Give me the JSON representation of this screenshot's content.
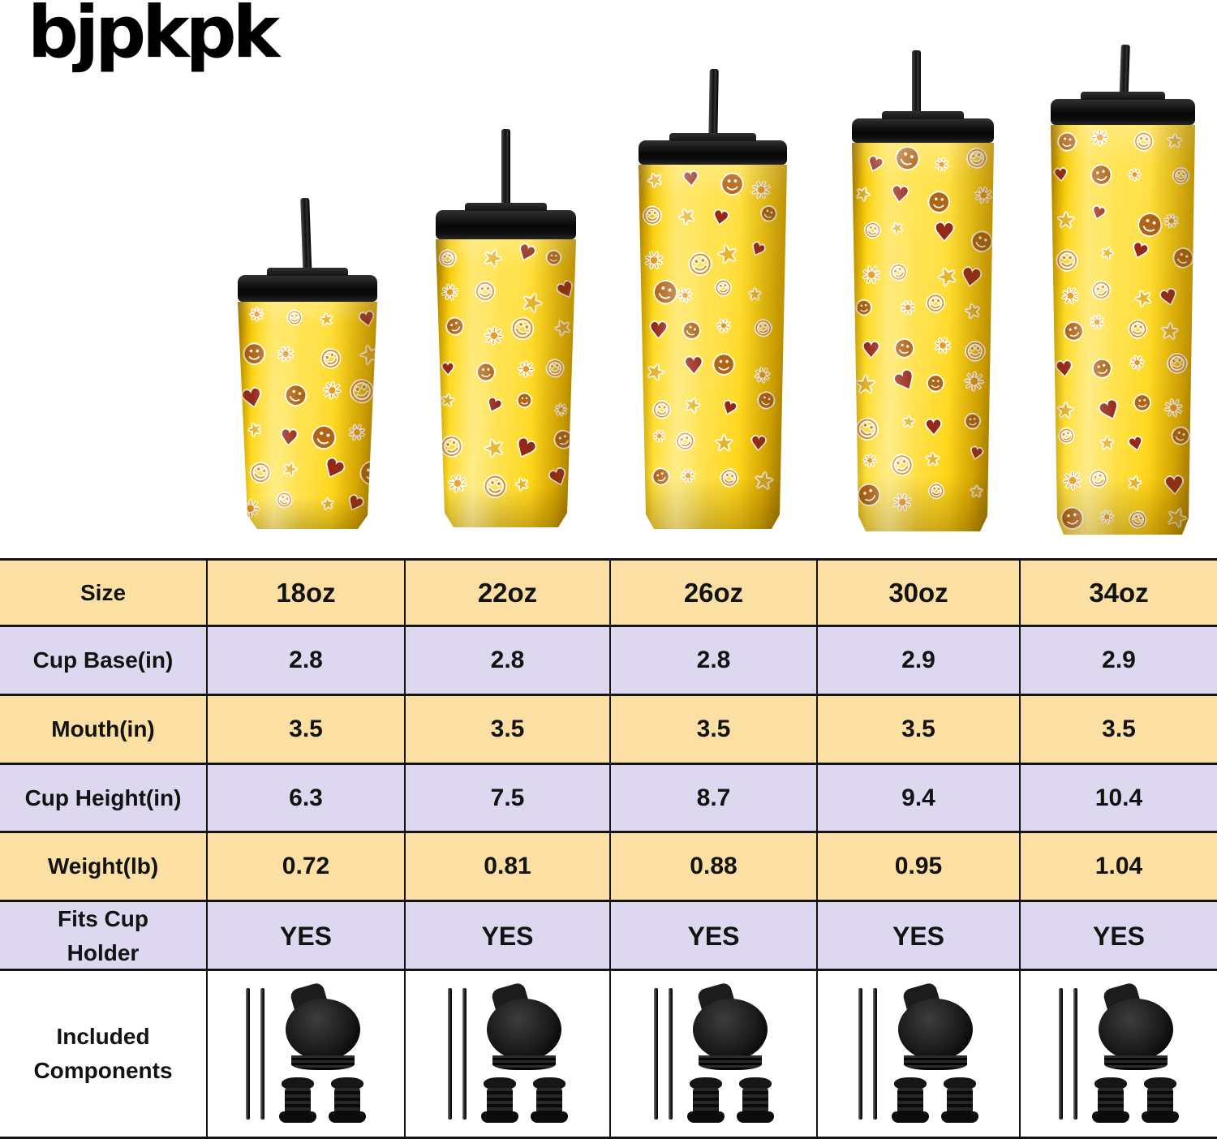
{
  "brand": {
    "logo_text": "bjpkpk"
  },
  "colors": {
    "row_yellow": "#fce0a3",
    "row_lavender": "#ded7f0",
    "row_white": "#ffffff",
    "table_border": "#141414",
    "cup_yellow": "#ffd91d",
    "lid_black": "#141414"
  },
  "sticker_icons": [
    {
      "name": "sun-icon",
      "glyph": "☀",
      "color": "#e8961e"
    },
    {
      "name": "smiley-face-icon",
      "glyph": "☺",
      "color": "#d8881c"
    },
    {
      "name": "star-icon",
      "glyph": "★",
      "color": "#e7b32a"
    },
    {
      "name": "heart-icon",
      "glyph": "♥",
      "color": "#96281a"
    },
    {
      "name": "smiley-dark-icon",
      "glyph": "☻",
      "color": "#b06414"
    }
  ],
  "table": {
    "rows": [
      {
        "key": "size",
        "label": "Size",
        "bg": "yellow",
        "values": [
          "18oz",
          "22oz",
          "26oz",
          "30oz",
          "34oz"
        ]
      },
      {
        "key": "cup_base",
        "label": "Cup Base(in)",
        "bg": "lavender",
        "values": [
          "2.8",
          "2.8",
          "2.8",
          "2.9",
          "2.9"
        ]
      },
      {
        "key": "mouth",
        "label": "Mouth(in)",
        "bg": "yellow",
        "values": [
          "3.5",
          "3.5",
          "3.5",
          "3.5",
          "3.5"
        ]
      },
      {
        "key": "cup_height",
        "label": "Cup Height(in)",
        "bg": "lavender",
        "values": [
          "6.3",
          "7.5",
          "8.7",
          "9.4",
          "10.4"
        ]
      },
      {
        "key": "weight",
        "label": "Weight(lb)",
        "bg": "yellow",
        "values": [
          "0.72",
          "0.81",
          "0.88",
          "0.95",
          "1.04"
        ]
      },
      {
        "key": "fits",
        "label": "Fits Cup Holder",
        "bg": "lavender",
        "values": [
          "YES",
          "YES",
          "YES",
          "YES",
          "YES"
        ]
      },
      {
        "key": "components",
        "label": "Included Components",
        "bg": "white",
        "type": "components",
        "icons": [
          "metal-straws-icon",
          "flip-lid-icon",
          "straw-stopper-icon"
        ]
      }
    ]
  },
  "chart_data": {
    "type": "table",
    "columns": [
      "18oz",
      "22oz",
      "26oz",
      "30oz",
      "34oz"
    ],
    "rows": [
      {
        "label": "Cup Base(in)",
        "values": [
          2.8,
          2.8,
          2.8,
          2.9,
          2.9
        ]
      },
      {
        "label": "Mouth(in)",
        "values": [
          3.5,
          3.5,
          3.5,
          3.5,
          3.5
        ]
      },
      {
        "label": "Cup Height(in)",
        "values": [
          6.3,
          7.5,
          8.7,
          9.4,
          10.4
        ]
      },
      {
        "label": "Weight(lb)",
        "values": [
          0.72,
          0.81,
          0.88,
          0.95,
          1.04
        ]
      },
      {
        "label": "Fits Cup Holder",
        "values": [
          "YES",
          "YES",
          "YES",
          "YES",
          "YES"
        ]
      }
    ]
  }
}
